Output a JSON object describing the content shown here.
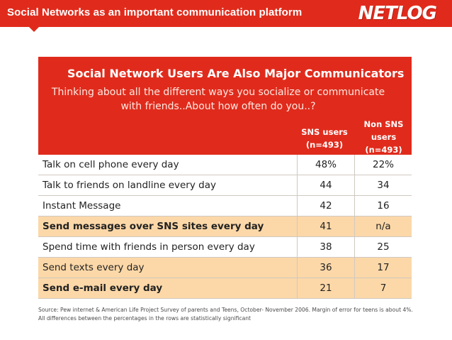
{
  "header": {
    "title": "Social Networks as an important communication platform",
    "logo": "NETLOG",
    "accent_color": "#e02b1c"
  },
  "panel": {
    "title": "Social Network Users Are Also Major Communicators",
    "subtitle": "Thinking about all the different ways you socialize or communicate with friends..About how often do you..?",
    "columns": [
      {
        "line1": "SNS users",
        "line2": "(n=493)",
        "line3": ""
      },
      {
        "line1": "Non SNS",
        "line2": "users",
        "line3": "(n=493)"
      }
    ],
    "rows": [
      {
        "label": "Talk on cell phone every day",
        "sns": "48%",
        "non_sns": "22%",
        "highlight": false,
        "bold": false
      },
      {
        "label": "Talk to friends on landline every day",
        "sns": "44",
        "non_sns": "34",
        "highlight": false,
        "bold": false
      },
      {
        "label": "Instant Message",
        "sns": "42",
        "non_sns": "16",
        "highlight": false,
        "bold": false
      },
      {
        "label": "Send messages over SNS sites every day",
        "sns": "41",
        "non_sns": "n/a",
        "highlight": true,
        "bold": true
      },
      {
        "label": "Spend time with friends in person every day",
        "sns": "38",
        "non_sns": "25",
        "highlight": false,
        "bold": false
      },
      {
        "label": "Send texts every day",
        "sns": "36",
        "non_sns": "17",
        "highlight": true,
        "bold": false
      },
      {
        "label": "Send e-mail every day",
        "sns": "21",
        "non_sns": "7",
        "highlight": true,
        "bold": true
      }
    ],
    "highlight_color": "#fcd8a8"
  },
  "source": "Source: Pew internet & American Life Project  Survey of parents and Teens, October- November 2006. Margin of error for teens is about 4%. All differences between the percentages in the rows are statistically significant"
}
